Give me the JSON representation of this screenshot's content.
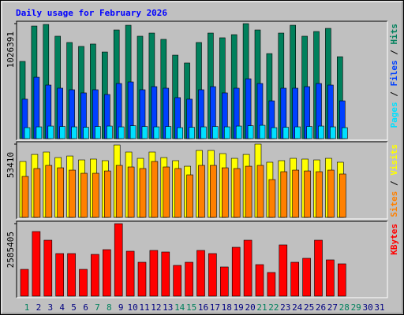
{
  "chart_data": [
    {
      "type": "bar",
      "title": "Daily usage for February 2026",
      "legend_separator": " / ",
      "ylim": [
        0,
        1026391
      ],
      "yticks": [
        1026391
      ],
      "series": [
        {
          "name": "Hits",
          "color": "#00805c",
          "values": [
            689000,
            1005000,
            1019000,
            914000,
            858000,
            823000,
            844000,
            773000,
            970000,
            1012000,
            914000,
            942000,
            886000,
            745000,
            675000,
            858000,
            942000,
            900000,
            928000,
            1026391,
            970000,
            759000,
            942000,
            1012000,
            914000,
            956000,
            984000,
            731000,
            null,
            null,
            null
          ]
        },
        {
          "name": "Files",
          "color": "#0040ff",
          "values": [
            352000,
            548000,
            478000,
            450000,
            436000,
            408000,
            436000,
            394000,
            492000,
            506000,
            436000,
            464000,
            450000,
            366000,
            352000,
            436000,
            464000,
            408000,
            450000,
            534000,
            492000,
            337000,
            450000,
            450000,
            464000,
            492000,
            478000,
            337000,
            null,
            null,
            null
          ]
        },
        {
          "name": "Pages",
          "color": "#00e0ff",
          "values": [
            98000,
            105000,
            112000,
            108000,
            105000,
            101000,
            108000,
            112000,
            105000,
            115000,
            108000,
            105000,
            108000,
            98000,
            101000,
            105000,
            108000,
            105000,
            112000,
            115000,
            119000,
            98000,
            101000,
            105000,
            108000,
            112000,
            105000,
            98000,
            null,
            null,
            null
          ]
        }
      ]
    },
    {
      "type": "bar",
      "ylim": [
        0,
        53410
      ],
      "yticks": [
        53410
      ],
      "series": [
        {
          "name": "Visits",
          "color": "#ffff00",
          "values": [
            40750,
            45900,
            47650,
            43600,
            44750,
            41900,
            42500,
            41350,
            52800,
            47650,
            43050,
            47650,
            43600,
            41350,
            37300,
            48800,
            48800,
            46500,
            43050,
            45900,
            53410,
            40200,
            41350,
            43050,
            42500,
            41900,
            43050,
            40200,
            null,
            null,
            null
          ]
        },
        {
          "name": "Sites",
          "color": "#ff8000",
          "values": [
            29850,
            35600,
            37900,
            36150,
            34450,
            32150,
            32150,
            33850,
            37900,
            36750,
            35600,
            40750,
            36750,
            35600,
            31000,
            37900,
            37900,
            36150,
            35600,
            37300,
            37900,
            27550,
            33300,
            34450,
            33850,
            33300,
            34450,
            31600,
            null,
            null,
            null
          ]
        }
      ]
    },
    {
      "type": "bar",
      "ylim": [
        0,
        2585405
      ],
      "yticks": [
        2585405
      ],
      "categories": [
        1,
        2,
        3,
        4,
        5,
        6,
        7,
        8,
        9,
        10,
        11,
        12,
        13,
        14,
        15,
        16,
        17,
        18,
        19,
        20,
        21,
        22,
        23,
        24,
        25,
        26,
        27,
        28,
        29,
        30,
        31
      ],
      "category_colors": [
        "#00805c",
        "#000080",
        "#000080",
        "#000080",
        "#000080",
        "#000080",
        "#00805c",
        "#00805c",
        "#000080",
        "#000080",
        "#000080",
        "#000080",
        "#000080",
        "#00805c",
        "#00805c",
        "#000080",
        "#000080",
        "#000080",
        "#000080",
        "#000080",
        "#00805c",
        "#00805c",
        "#000080",
        "#000080",
        "#000080",
        "#000080",
        "#000080",
        "#00805c",
        "#00805c",
        "#000080",
        "#000080"
      ],
      "series": [
        {
          "name": "KBytes",
          "color": "#ff0000",
          "values": [
            955000,
            2304000,
            1995000,
            1518000,
            1518000,
            955000,
            1489000,
            1658000,
            2585405,
            1602000,
            1208000,
            1630000,
            1574000,
            1096000,
            1208000,
            1630000,
            1518000,
            1040000,
            1742000,
            1995000,
            1124000,
            843000,
            1827000,
            1208000,
            1349000,
            1995000,
            1293000,
            1152000,
            null,
            null,
            null
          ]
        }
      ]
    }
  ]
}
